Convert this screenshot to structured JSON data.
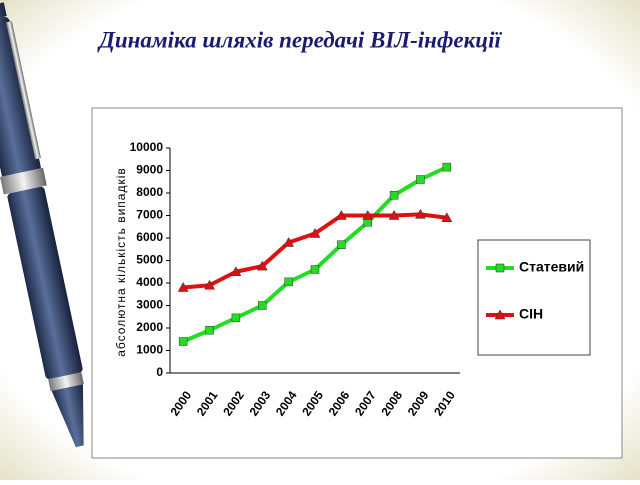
{
  "chart_data": {
    "type": "line",
    "title": "Динаміка шляхів передачі ВІЛ-інфекції",
    "y_label": "абсолютна кількість випадків",
    "categories": [
      "2000",
      "2001",
      "2002",
      "2003",
      "2004",
      "2005",
      "2006",
      "2007",
      "2008",
      "2009",
      "2010"
    ],
    "series": [
      {
        "name": "Статевий",
        "color": "#22dd22",
        "marker": "square",
        "values": [
          1400,
          1900,
          2450,
          3000,
          4050,
          4600,
          5700,
          6700,
          7900,
          8600,
          9150
        ]
      },
      {
        "name": "СІН",
        "color": "#dd1111",
        "marker": "triangle",
        "values": [
          3800,
          3900,
          4500,
          4750,
          5800,
          6200,
          7000,
          7000,
          7000,
          7050,
          6900
        ]
      }
    ],
    "ylim": [
      0,
      10000
    ],
    "yticks": [
      0,
      1000,
      2000,
      3000,
      4000,
      5000,
      6000,
      7000,
      8000,
      9000,
      10000
    ],
    "grid": false,
    "legend": "right"
  }
}
